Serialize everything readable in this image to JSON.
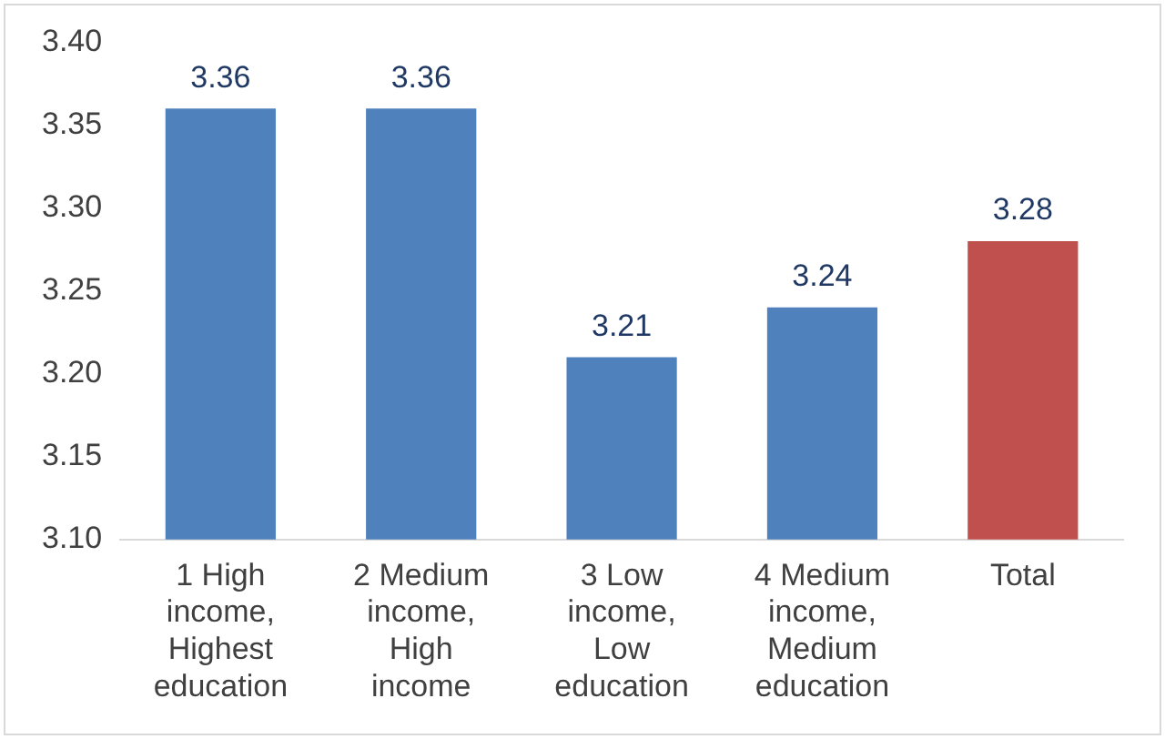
{
  "chart_data": {
    "type": "bar",
    "categories": [
      "1 High income, Highest education",
      "2 Medium income, High income",
      "3 Low income, Low education",
      "4 Medium income, Medium education",
      "Total"
    ],
    "values": [
      3.36,
      3.36,
      3.21,
      3.24,
      3.28
    ],
    "colors": [
      "#4f81bd",
      "#4f81bd",
      "#4f81bd",
      "#4f81bd",
      "#c0504d"
    ],
    "ylim": [
      3.1,
      3.4
    ],
    "yticks": [
      {
        "value": 3.1,
        "label": "3.10"
      },
      {
        "value": 3.15,
        "label": "3.15"
      },
      {
        "value": 3.2,
        "label": "3.20"
      },
      {
        "value": 3.25,
        "label": "3.25"
      },
      {
        "value": 3.3,
        "label": "3.30"
      },
      {
        "value": 3.35,
        "label": "3.35"
      },
      {
        "value": 3.4,
        "label": "3.40"
      }
    ],
    "grid": false,
    "legend": false,
    "data_labels": true
  }
}
